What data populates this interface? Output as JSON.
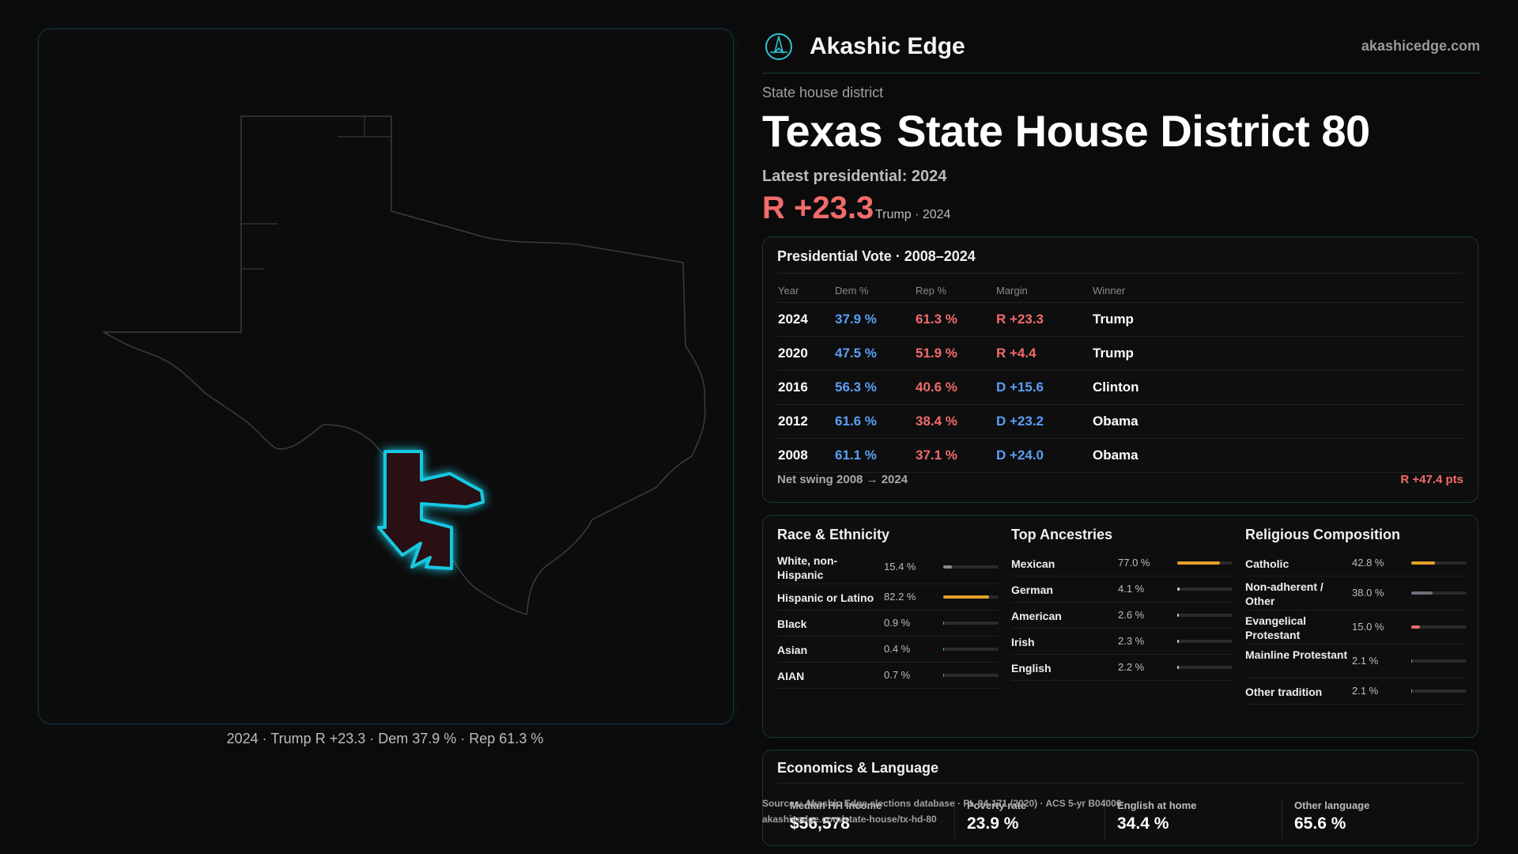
{
  "map": {
    "caption": "2024 · Trump R +23.3 · Dem 37.9 % · Rep 61.3 %",
    "outline_color": "#3a3a3a",
    "district_color": "#18c8e0",
    "district_fill": "#2a0f14"
  },
  "header": {
    "brand": "Akashic Edge",
    "logo_icon": "compass-logo-icon",
    "url": "akashicedge.com"
  },
  "district": {
    "kicker": "State house district",
    "title_state": "Texas",
    "title_name": "State House District 80",
    "latest_label": "Latest presidential: 2024",
    "margin": "R +23.3",
    "margin_sub": "Trump · 2024",
    "margin_color": "#f26b6b"
  },
  "presidential": {
    "title": "Presidential Vote · 2008–2024",
    "headers": [
      "Year",
      "Dem %",
      "Rep %",
      "Margin",
      "Winner"
    ],
    "rows": [
      {
        "year": "2024",
        "dem": "37.9 %",
        "rep": "61.3 %",
        "margin": "R +23.3",
        "party": "R",
        "winner": "Trump"
      },
      {
        "year": "2020",
        "dem": "47.5 %",
        "rep": "51.9 %",
        "margin": "R +4.4",
        "party": "R",
        "winner": "Trump"
      },
      {
        "year": "2016",
        "dem": "56.3 %",
        "rep": "40.6 %",
        "margin": "D +15.6",
        "party": "D",
        "winner": "Clinton"
      },
      {
        "year": "2012",
        "dem": "61.6 %",
        "rep": "38.4 %",
        "margin": "D +23.2",
        "party": "D",
        "winner": "Obama"
      },
      {
        "year": "2008",
        "dem": "61.1 %",
        "rep": "37.1 %",
        "margin": "D +24.0",
        "party": "D",
        "winner": "Obama"
      }
    ],
    "net_swing_label": "Net swing 2008 → 2024",
    "net_swing_value": "R +47.4 pts",
    "dem_color": "#5b9ff5",
    "rep_color": "#f26b6b"
  },
  "race": {
    "title": "Race & Ethnicity",
    "items": [
      {
        "label": "White, non-Hispanic",
        "value": "15.4 %",
        "pct": 15.4,
        "color": "#8a8a8a"
      },
      {
        "label": "Hispanic or Latino",
        "value": "82.2 %",
        "pct": 82.2,
        "color": "#e3a12a"
      },
      {
        "label": "Black",
        "value": "0.9 %",
        "pct": 0.9,
        "color": "#5b9ff5"
      },
      {
        "label": "Asian",
        "value": "0.4 %",
        "pct": 0.4,
        "color": "#3ab8a0"
      },
      {
        "label": "AIAN",
        "value": "0.7 %",
        "pct": 0.7,
        "color": "#e07a5f"
      }
    ]
  },
  "ancestry": {
    "title": "Top Ancestries",
    "items": [
      {
        "label": "Mexican",
        "value": "77.0 %",
        "pct": 77.0,
        "color": "#e3a12a"
      },
      {
        "label": "German",
        "value": "4.1 %",
        "pct": 4.1,
        "color": "#cfcfcf"
      },
      {
        "label": "American",
        "value": "2.6 %",
        "pct": 2.6,
        "color": "#cfcfcf"
      },
      {
        "label": "Irish",
        "value": "2.3 %",
        "pct": 2.3,
        "color": "#cfcfcf"
      },
      {
        "label": "English",
        "value": "2.2 %",
        "pct": 2.2,
        "color": "#cfcfcf"
      }
    ]
  },
  "religion": {
    "title": "Religious Composition",
    "items": [
      {
        "label": "Catholic",
        "value": "42.8 %",
        "pct": 42.8,
        "color": "#e3a12a"
      },
      {
        "label": "Non-adherent / Other",
        "value": "38.0 %",
        "pct": 38.0,
        "color": "#6b6e78"
      },
      {
        "label": "Evangelical Protestant",
        "value": "15.0 %",
        "pct": 15.0,
        "color": "#f26b6b"
      },
      {
        "label": "Mainline Protestant",
        "value": "2.1 %",
        "pct": 2.1,
        "color": "#7a8cf0"
      },
      {
        "label": "Other tradition",
        "value": "2.1 %",
        "pct": 2.1,
        "color": "#9a9a9a"
      }
    ]
  },
  "economics": {
    "title": "Economics & Language",
    "items": [
      {
        "label": "Median HH income",
        "value": "$56,578"
      },
      {
        "label": "Poverty rate",
        "value": "23.9 %"
      },
      {
        "label": "English at home",
        "value": "34.4 %"
      },
      {
        "label": "Other language",
        "value": "65.6 %"
      }
    ]
  },
  "footer": {
    "sources": "Sources: Akashic Edge elections database · PL 94-171 (2020) · ACS 5-yr B04006",
    "url": "akashicedge.com/state-house/tx-hd-80"
  }
}
